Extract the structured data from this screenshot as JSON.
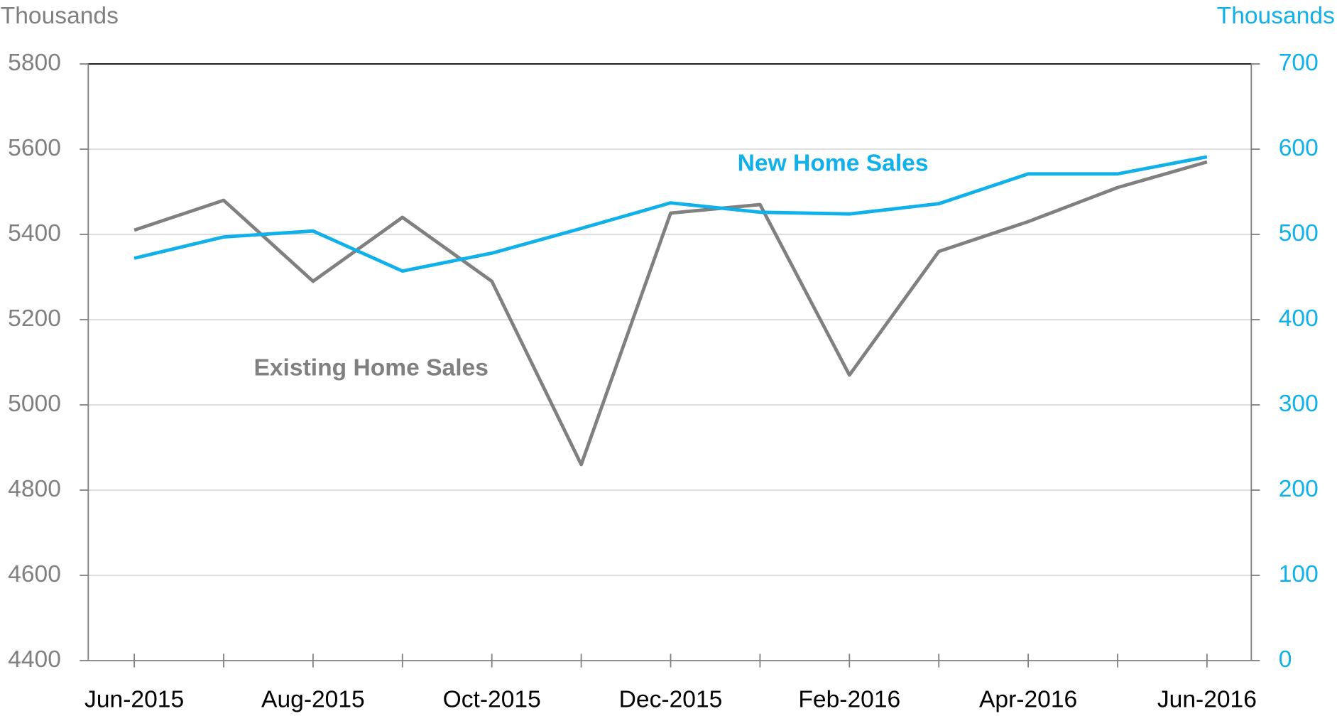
{
  "chart_data": {
    "type": "line",
    "y_label": "Thousands",
    "y2_label": "Thousands",
    "categories": [
      "Jun-2015",
      null,
      "Aug-2015",
      null,
      "Oct-2015",
      null,
      "Dec-2015",
      null,
      "Feb-2016",
      null,
      "Apr-2016",
      null,
      "Jun-2016"
    ],
    "series": [
      {
        "name": "Existing Home Sales",
        "color": "#808080",
        "axis": "y",
        "values": [
          5410,
          5480,
          5290,
          5440,
          5290,
          4860,
          5450,
          5470,
          5070,
          5360,
          5430,
          5510,
          5570
        ]
      },
      {
        "name": "New Home Sales",
        "color": "#10b0e8",
        "axis": "y2",
        "values": [
          472,
          497,
          504,
          457,
          478,
          507,
          537,
          526,
          524,
          536,
          571,
          571,
          591
        ]
      }
    ],
    "ylim": [
      4400,
      5800
    ],
    "yticks": [
      4400,
      4600,
      4800,
      5000,
      5200,
      5400,
      5600,
      5800
    ],
    "y2lim": [
      0,
      700
    ],
    "y2ticks": [
      0,
      100,
      200,
      300,
      400,
      500,
      600,
      700
    ],
    "grid": true
  }
}
